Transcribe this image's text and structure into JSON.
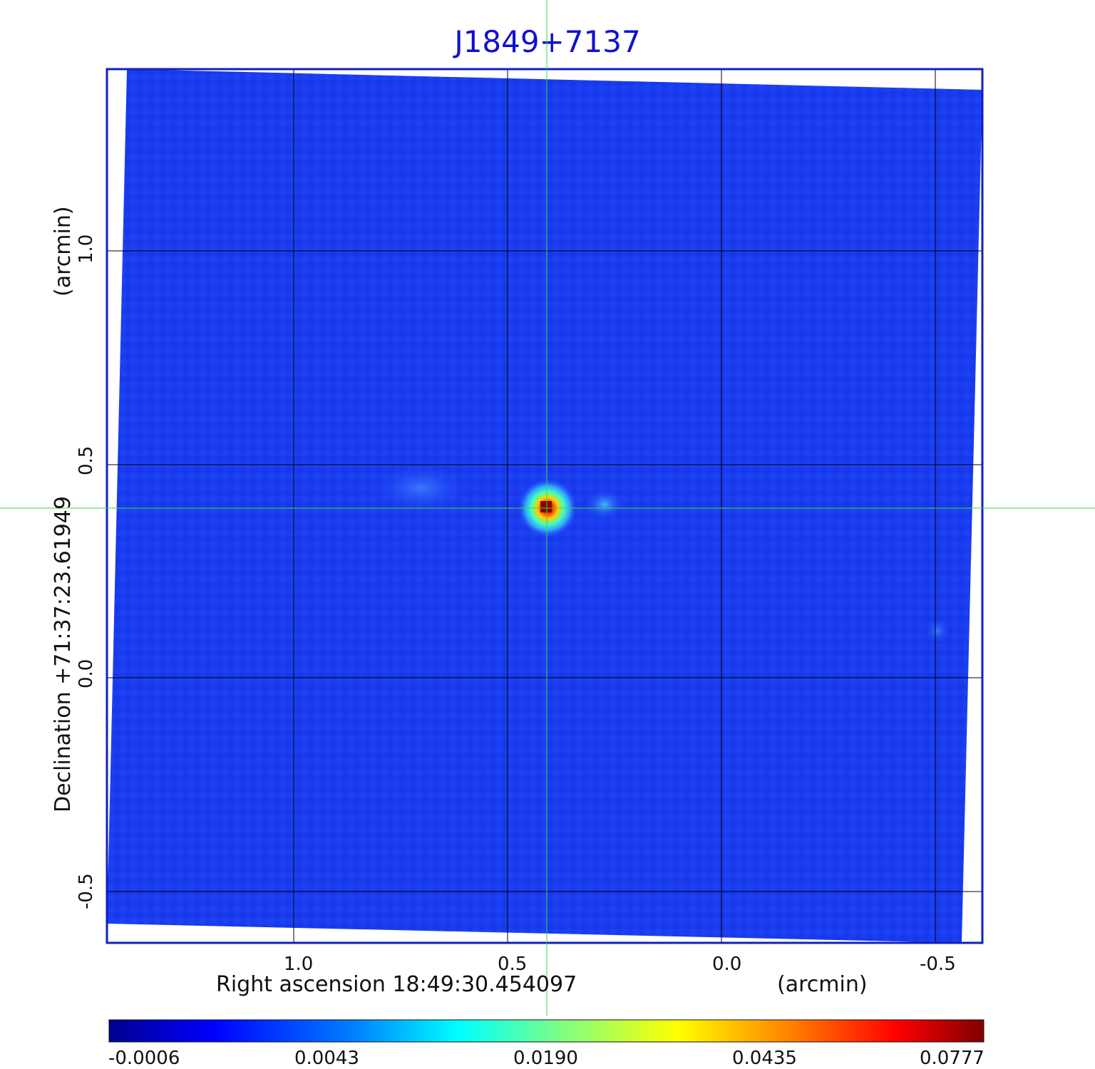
{
  "title": "J1849+7137",
  "x_axis": {
    "label": "Right ascension  18:49:30.454097",
    "unit": "(arcmin)",
    "ticks": [
      "1.0",
      "0.5",
      "0.0",
      "-0.5"
    ]
  },
  "y_axis": {
    "label": "Declination  +71:37:23.61949",
    "unit": "(arcmin)",
    "ticks": [
      "1.0",
      "0.5",
      "0.0",
      "-0.5"
    ]
  },
  "colorbar": {
    "ticks": [
      "-0.0006",
      "0.0043",
      "0.0190",
      "0.0435",
      "0.0777"
    ],
    "colors": [
      "#00008f",
      "#0000ff",
      "#0080ff",
      "#00ffff",
      "#80ff80",
      "#ffff00",
      "#ff8000",
      "#ff0000",
      "#800000"
    ]
  },
  "colors": {
    "title": "#1010d0",
    "frame": "#1020c0",
    "background_map": "#1a3cf0",
    "crosshair": "#33dd33",
    "grid": "#000000"
  }
}
